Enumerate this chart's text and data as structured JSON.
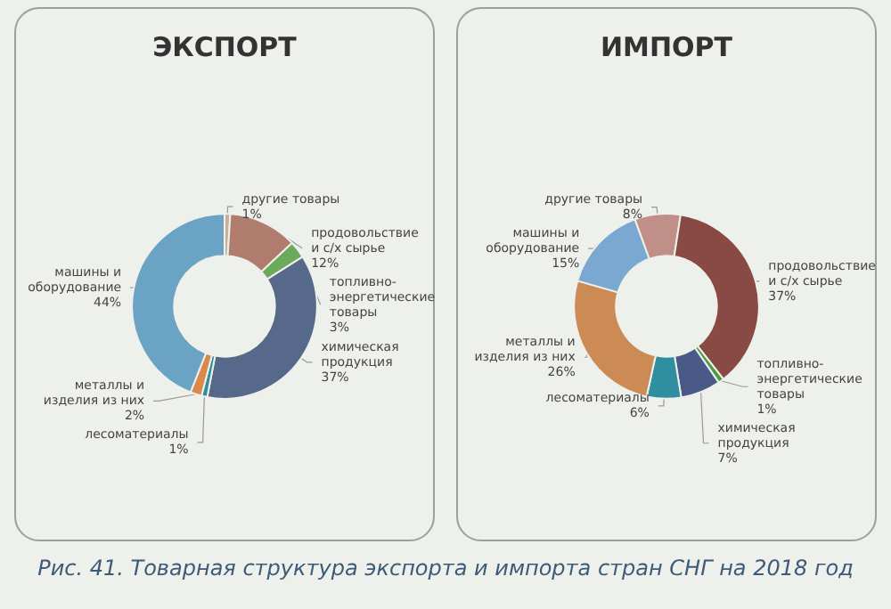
{
  "chart_data": [
    {
      "type": "donut",
      "title": "ЭКСПОРТ",
      "categories": [
        "другие товары",
        "продовольствие и с/х сырье",
        "топливно-энергетические товары",
        "химическая продукция",
        "лесоматериалы",
        "металлы и изделия из них",
        "машины и оборудование"
      ],
      "values": [
        1,
        12,
        3,
        37,
        1,
        2,
        44
      ],
      "value_labels": [
        "1%",
        "12%",
        "3%",
        "37%",
        "1%",
        "2%",
        "44%"
      ],
      "colors": [
        "#c9b09a",
        "#b07c6e",
        "#6aaa5a",
        "#56698a",
        "#2f8f9a",
        "#d98a4a",
        "#6ba3c4"
      ],
      "legend": false,
      "annotations": [
        "Рис. 41. Товарная структура экспорта и импорта стран СНГ на 2018 год"
      ]
    },
    {
      "type": "donut",
      "title": "ИМПОРТ",
      "categories": [
        "другие товары",
        "продовольствие и с/х сырье",
        "топливно-энергетические товары",
        "химическая продукция",
        "лесоматериалы",
        "металлы и изделия из них",
        "машины и оборудование"
      ],
      "values": [
        8,
        37,
        1,
        7,
        6,
        26,
        15
      ],
      "value_labels": [
        "8%",
        "37%",
        "1%",
        "7%",
        "6%",
        "26%",
        "15%"
      ],
      "colors": [
        "#c09088",
        "#8a4a44",
        "#4f9a45",
        "#4a5a88",
        "#2f8fa0",
        "#cc8a55",
        "#7aa8d0"
      ],
      "legend": false
    }
  ]
}
